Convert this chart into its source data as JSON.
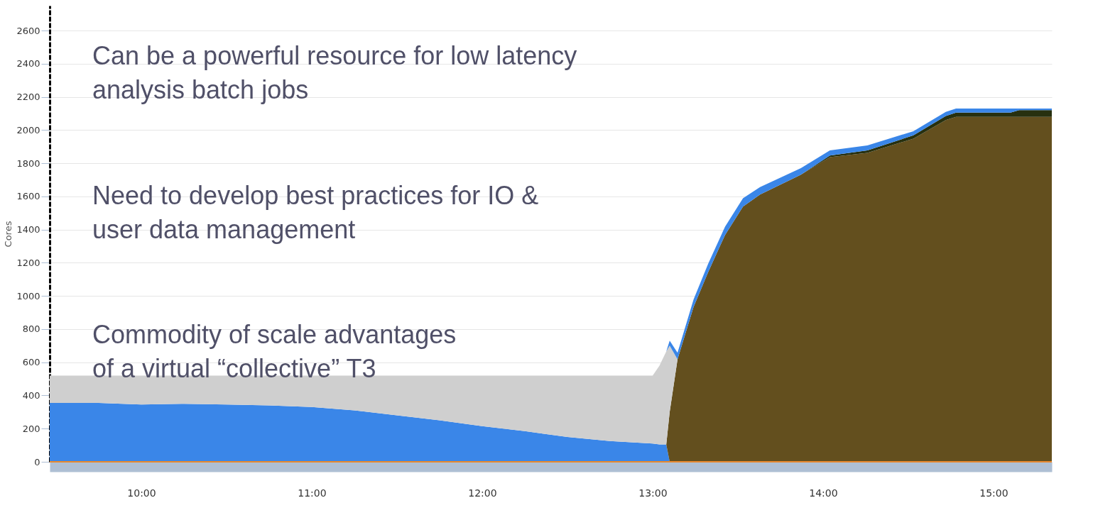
{
  "chart_data": {
    "type": "area",
    "stacked": true,
    "ylabel": "Cores",
    "annotations": [
      "Can be a powerful resource for low latency\nanalysis batch jobs",
      "Need to develop best practices for IO &\nuser data management",
      "Commodity of scale advantages\nof a virtual “collective” T3"
    ],
    "x": [
      9.4625,
      9.75,
      10.0,
      10.25,
      10.5,
      10.75,
      11.0,
      11.25,
      11.5,
      11.75,
      12.0,
      12.25,
      12.5,
      12.75,
      13.0,
      13.04,
      13.08,
      13.1,
      13.146,
      13.24,
      13.325,
      13.425,
      13.53,
      13.63,
      13.87,
      14.04,
      14.26,
      14.53,
      14.72,
      14.78,
      15.1,
      15.15,
      15.342
    ],
    "series": [
      {
        "color": "#3a86e8",
        "values": [
          355,
          355,
          345,
          350,
          345,
          340,
          330,
          310,
          280,
          250,
          215,
          185,
          150,
          125,
          110,
          105,
          105,
          0,
          0,
          0,
          0,
          0,
          0,
          0,
          0,
          0,
          0,
          0,
          0,
          0,
          0,
          0,
          0
        ]
      },
      {
        "color": "#634f1e",
        "values": [
          0,
          0,
          0,
          0,
          0,
          0,
          0,
          0,
          0,
          0,
          0,
          0,
          0,
          0,
          0,
          0,
          0,
          300,
          618,
          933,
          1142,
          1368,
          1539,
          1611,
          1731,
          1837,
          1863,
          1948,
          2060,
          2080,
          2080,
          2080,
          2080
        ]
      },
      {
        "color": "#cfcfcf",
        "values": [
          165,
          165,
          175,
          170,
          175,
          180,
          190,
          210,
          240,
          270,
          305,
          335,
          370,
          395,
          410,
          475,
          560,
          400,
          0,
          0,
          0,
          0,
          0,
          0,
          0,
          0,
          0,
          0,
          0,
          0,
          0,
          0,
          0
        ]
      },
      {
        "color": "#27300f",
        "values": [
          0,
          0,
          0,
          0,
          0,
          0,
          0,
          0,
          0,
          0,
          0,
          0,
          0,
          0,
          0,
          0,
          0,
          0,
          0,
          0,
          0,
          0,
          0,
          0,
          0,
          10,
          15,
          20,
          25,
          25,
          25,
          40,
          40
        ]
      },
      {
        "color": "#3a86e8",
        "values": [
          0,
          0,
          0,
          0,
          0,
          0,
          0,
          0,
          0,
          0,
          0,
          0,
          0,
          0,
          0,
          0,
          0,
          30,
          40,
          45,
          50,
          50,
          50,
          45,
          40,
          30,
          30,
          25,
          25,
          25,
          25,
          10,
          10
        ]
      },
      {
        "type": "line",
        "color": "#e8892e",
        "x": [
          9.4625,
          15.342
        ],
        "values": [
          0,
          0
        ]
      }
    ],
    "xlim": [
      9.4625,
      15.342
    ],
    "xticks": [
      {
        "value": 10,
        "label": "10:00"
      },
      {
        "value": 11,
        "label": "11:00"
      },
      {
        "value": 12,
        "label": "12:00"
      },
      {
        "value": 13,
        "label": "13:00"
      },
      {
        "value": 14,
        "label": "14:00"
      },
      {
        "value": 15,
        "label": "15:00"
      }
    ],
    "ylim": [
      0,
      2750
    ],
    "yticks": [
      0,
      200,
      400,
      600,
      800,
      1000,
      1200,
      1400,
      1600,
      1800,
      2000,
      2200,
      2400,
      2600
    ],
    "grid": "y",
    "legend": false
  }
}
